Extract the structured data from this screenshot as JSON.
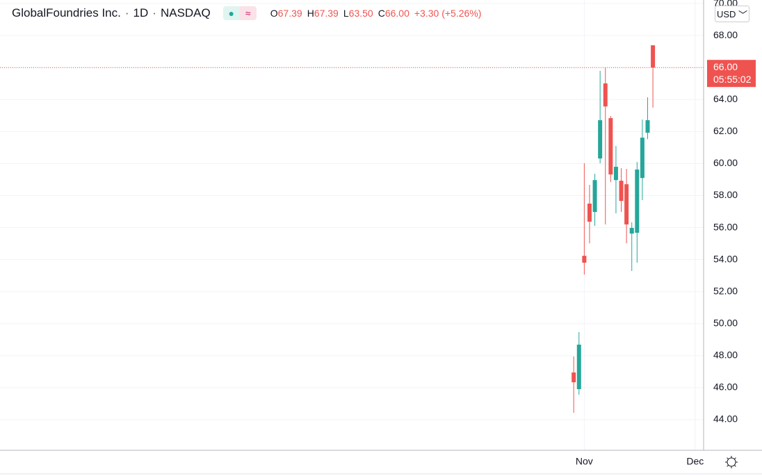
{
  "header": {
    "title": "GlobalFoundries Inc.",
    "interval": "1D",
    "exchange": "NASDAQ",
    "ohlc_legend": [
      {
        "label": "O",
        "value": "67.39"
      },
      {
        "label": "H",
        "value": "67.39"
      },
      {
        "label": "L",
        "value": "63.50"
      },
      {
        "label": "C",
        "value": "66.00"
      }
    ],
    "change": "+3.30 (+5.26%)",
    "currency": "USD",
    "last_price_label": "66.00",
    "countdown": "05:55:02"
  },
  "chart_data": {
    "type": "candlestick",
    "up_color": "#26a69a",
    "down_color": "#ef5350",
    "grid": true,
    "x": [
      0,
      1,
      2,
      3,
      4,
      5,
      6,
      7,
      8,
      9,
      10,
      11,
      12,
      13,
      14,
      15
    ],
    "open": [
      46.95,
      45.91,
      54.24,
      57.5,
      56.98,
      60.32,
      65.01,
      62.84,
      58.97,
      58.93,
      58.71,
      55.63,
      55.68,
      59.1,
      61.93,
      67.39
    ],
    "high": [
      47.95,
      49.47,
      60.02,
      58.67,
      59.36,
      65.79,
      66.0,
      62.97,
      61.1,
      59.71,
      59.67,
      56.33,
      60.1,
      62.75,
      64.14,
      67.39
    ],
    "low": [
      44.43,
      45.56,
      53.07,
      55.02,
      56.11,
      60.02,
      56.2,
      58.84,
      56.89,
      56.98,
      55.02,
      53.29,
      53.81,
      57.72,
      61.53,
      63.5
    ],
    "close": [
      46.34,
      48.69,
      53.81,
      56.37,
      58.97,
      62.71,
      63.57,
      59.32,
      59.8,
      57.67,
      56.2,
      55.98,
      59.63,
      61.62,
      62.71,
      66.0
    ],
    "xlim": [
      -108,
      24.6
    ],
    "xticks": [
      {
        "value": 2,
        "label": "Nov"
      },
      {
        "value": 23,
        "label": "Dec"
      }
    ],
    "ylim": [
      42.09,
      70.22
    ],
    "yticks": [
      {
        "value": 44,
        "label": "44.00"
      },
      {
        "value": 46,
        "label": "46.00"
      },
      {
        "value": 48,
        "label": "48.00"
      },
      {
        "value": 50,
        "label": "50.00"
      },
      {
        "value": 52,
        "label": "52.00"
      },
      {
        "value": 54,
        "label": "54.00"
      },
      {
        "value": 56,
        "label": "56.00"
      },
      {
        "value": 58,
        "label": "58.00"
      },
      {
        "value": 60,
        "label": "60.00"
      },
      {
        "value": 62,
        "label": "62.00"
      },
      {
        "value": 64,
        "label": "64.00"
      },
      {
        "value": 66,
        "label": "66.00"
      },
      {
        "value": 68,
        "label": "68.00"
      },
      {
        "value": 70,
        "label": "70.00"
      }
    ]
  }
}
